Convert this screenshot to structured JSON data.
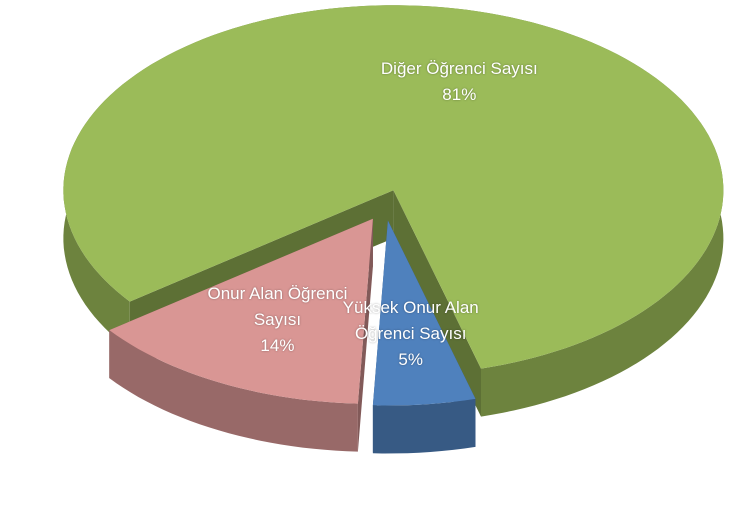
{
  "chart_data": {
    "type": "pie",
    "categories": [
      "Diğer Öğrenci Sayısı",
      "Yüksek Onur Alan Öğrenci Sayısı",
      "Onur Alan Öğrenci Sayısı"
    ],
    "values": [
      81,
      5,
      14
    ],
    "value_labels": [
      "81%",
      "5%",
      "14%"
    ],
    "colors": [
      "#9bbb59",
      "#4f81bd",
      "#d99694"
    ]
  }
}
